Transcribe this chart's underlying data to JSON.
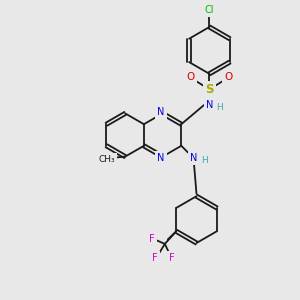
{
  "bg_color": "#e8e8e8",
  "bond_color": "#1a1a1a",
  "N_color": "#0000ee",
  "O_color": "#dd0000",
  "S_color": "#aaaa00",
  "Cl_color": "#00bb00",
  "F_color": "#cc00cc",
  "H_color": "#44aaaa",
  "lw": 1.3,
  "dbo": 0.055,
  "xlim": [
    0,
    10
  ],
  "ylim": [
    0,
    10
  ]
}
